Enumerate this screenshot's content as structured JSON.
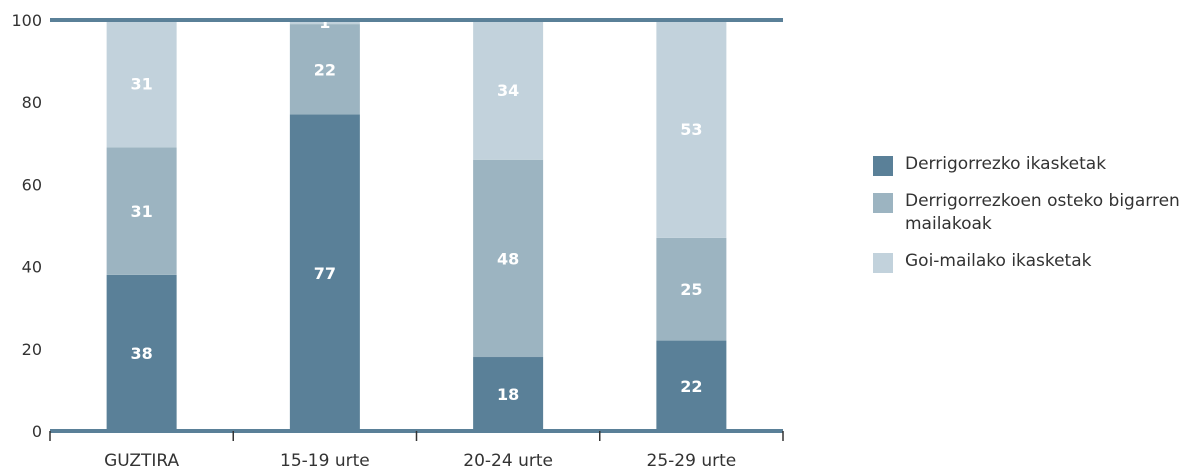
{
  "colors": {
    "series": [
      "#5a8098",
      "#9cb4c1",
      "#c2d2dc"
    ],
    "axis": "#5a8098",
    "text": "#333333",
    "label": "#ffffff"
  },
  "chart_data": {
    "type": "bar",
    "stacked": true,
    "categories": [
      "GUZTIRA",
      "15-19 urte",
      "20-24 urte",
      "25-29 urte"
    ],
    "series": [
      {
        "name": "Derrigorrezko ikasketak",
        "values": [
          38,
          77,
          18,
          22
        ]
      },
      {
        "name": "Derrigorrezkoen osteko bigarren mailakoak",
        "values": [
          31,
          22,
          48,
          25
        ]
      },
      {
        "name": "Goi-mailako ikasketak",
        "values": [
          31,
          1,
          34,
          53
        ]
      }
    ],
    "data_labels": [
      [
        "38",
        "77",
        "18",
        "22"
      ],
      [
        "31",
        "22",
        "48",
        "25"
      ],
      [
        "31",
        "1",
        "34",
        "53"
      ]
    ],
    "yticks": [
      "0",
      "20",
      "40",
      "60",
      "80",
      "100"
    ],
    "ylim": [
      0,
      100
    ],
    "title": "",
    "xlabel": "",
    "ylabel": "",
    "legend_position": "right",
    "grid": false
  }
}
